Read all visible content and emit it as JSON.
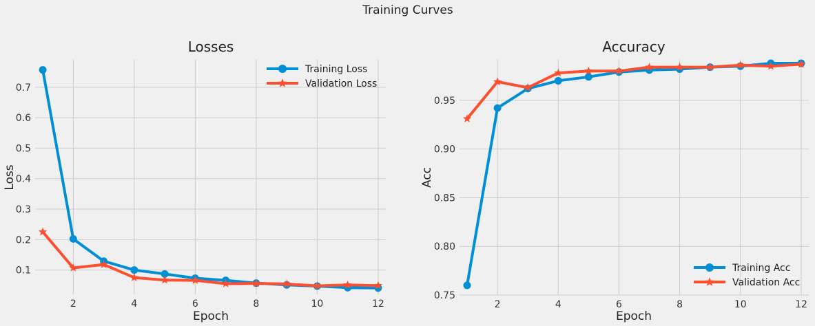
{
  "figure": {
    "suptitle": "Training Curves"
  },
  "chart_data": [
    {
      "type": "line",
      "title": "Losses",
      "xlabel": "Epoch",
      "ylabel": "Loss",
      "x": [
        1,
        2,
        3,
        4,
        5,
        6,
        7,
        8,
        9,
        10,
        11,
        12
      ],
      "xlim": [
        0.75,
        12.25
      ],
      "ylim": [
        0.02,
        0.79
      ],
      "xticks": [
        2,
        4,
        6,
        8,
        10,
        12
      ],
      "yticks": [
        0.1,
        0.2,
        0.3,
        0.4,
        0.5,
        0.6,
        0.7
      ],
      "ytick_labels": [
        "0.1",
        "0.2",
        "0.3",
        "0.4",
        "0.5",
        "0.6",
        "0.7"
      ],
      "grid": true,
      "legend_position": "top-right",
      "series": [
        {
          "name": "Training Loss",
          "marker": "circle",
          "color": "#008fd5",
          "values": [
            0.757,
            0.202,
            0.129,
            0.1,
            0.087,
            0.073,
            0.066,
            0.057,
            0.051,
            0.047,
            0.042,
            0.041
          ]
        },
        {
          "name": "Validation Loss",
          "marker": "star",
          "color": "#fc4f30",
          "values": [
            0.225,
            0.107,
            0.118,
            0.075,
            0.067,
            0.066,
            0.055,
            0.056,
            0.054,
            0.048,
            0.051,
            0.049
          ]
        }
      ]
    },
    {
      "type": "line",
      "title": "Accuracy",
      "xlabel": "Epoch",
      "ylabel": "Acc",
      "x": [
        1,
        2,
        3,
        4,
        5,
        6,
        7,
        8,
        9,
        10,
        11,
        12
      ],
      "xlim": [
        0.75,
        12.25
      ],
      "ylim": [
        0.75,
        0.9915
      ],
      "xticks": [
        2,
        4,
        6,
        8,
        10,
        12
      ],
      "yticks": [
        0.75,
        0.8,
        0.85,
        0.9,
        0.95
      ],
      "ytick_labels": [
        "0.75",
        "0.80",
        "0.85",
        "0.90",
        "0.95"
      ],
      "grid": true,
      "legend_position": "bottom-right",
      "series": [
        {
          "name": "Training Acc",
          "marker": "circle",
          "color": "#008fd5",
          "values": [
            0.76,
            0.942,
            0.962,
            0.97,
            0.974,
            0.979,
            0.981,
            0.982,
            0.984,
            0.985,
            0.988,
            0.988
          ]
        },
        {
          "name": "Validation Acc",
          "marker": "star",
          "color": "#fc4f30",
          "values": [
            0.931,
            0.969,
            0.963,
            0.978,
            0.98,
            0.98,
            0.984,
            0.984,
            0.984,
            0.986,
            0.985,
            0.987
          ]
        }
      ]
    }
  ]
}
